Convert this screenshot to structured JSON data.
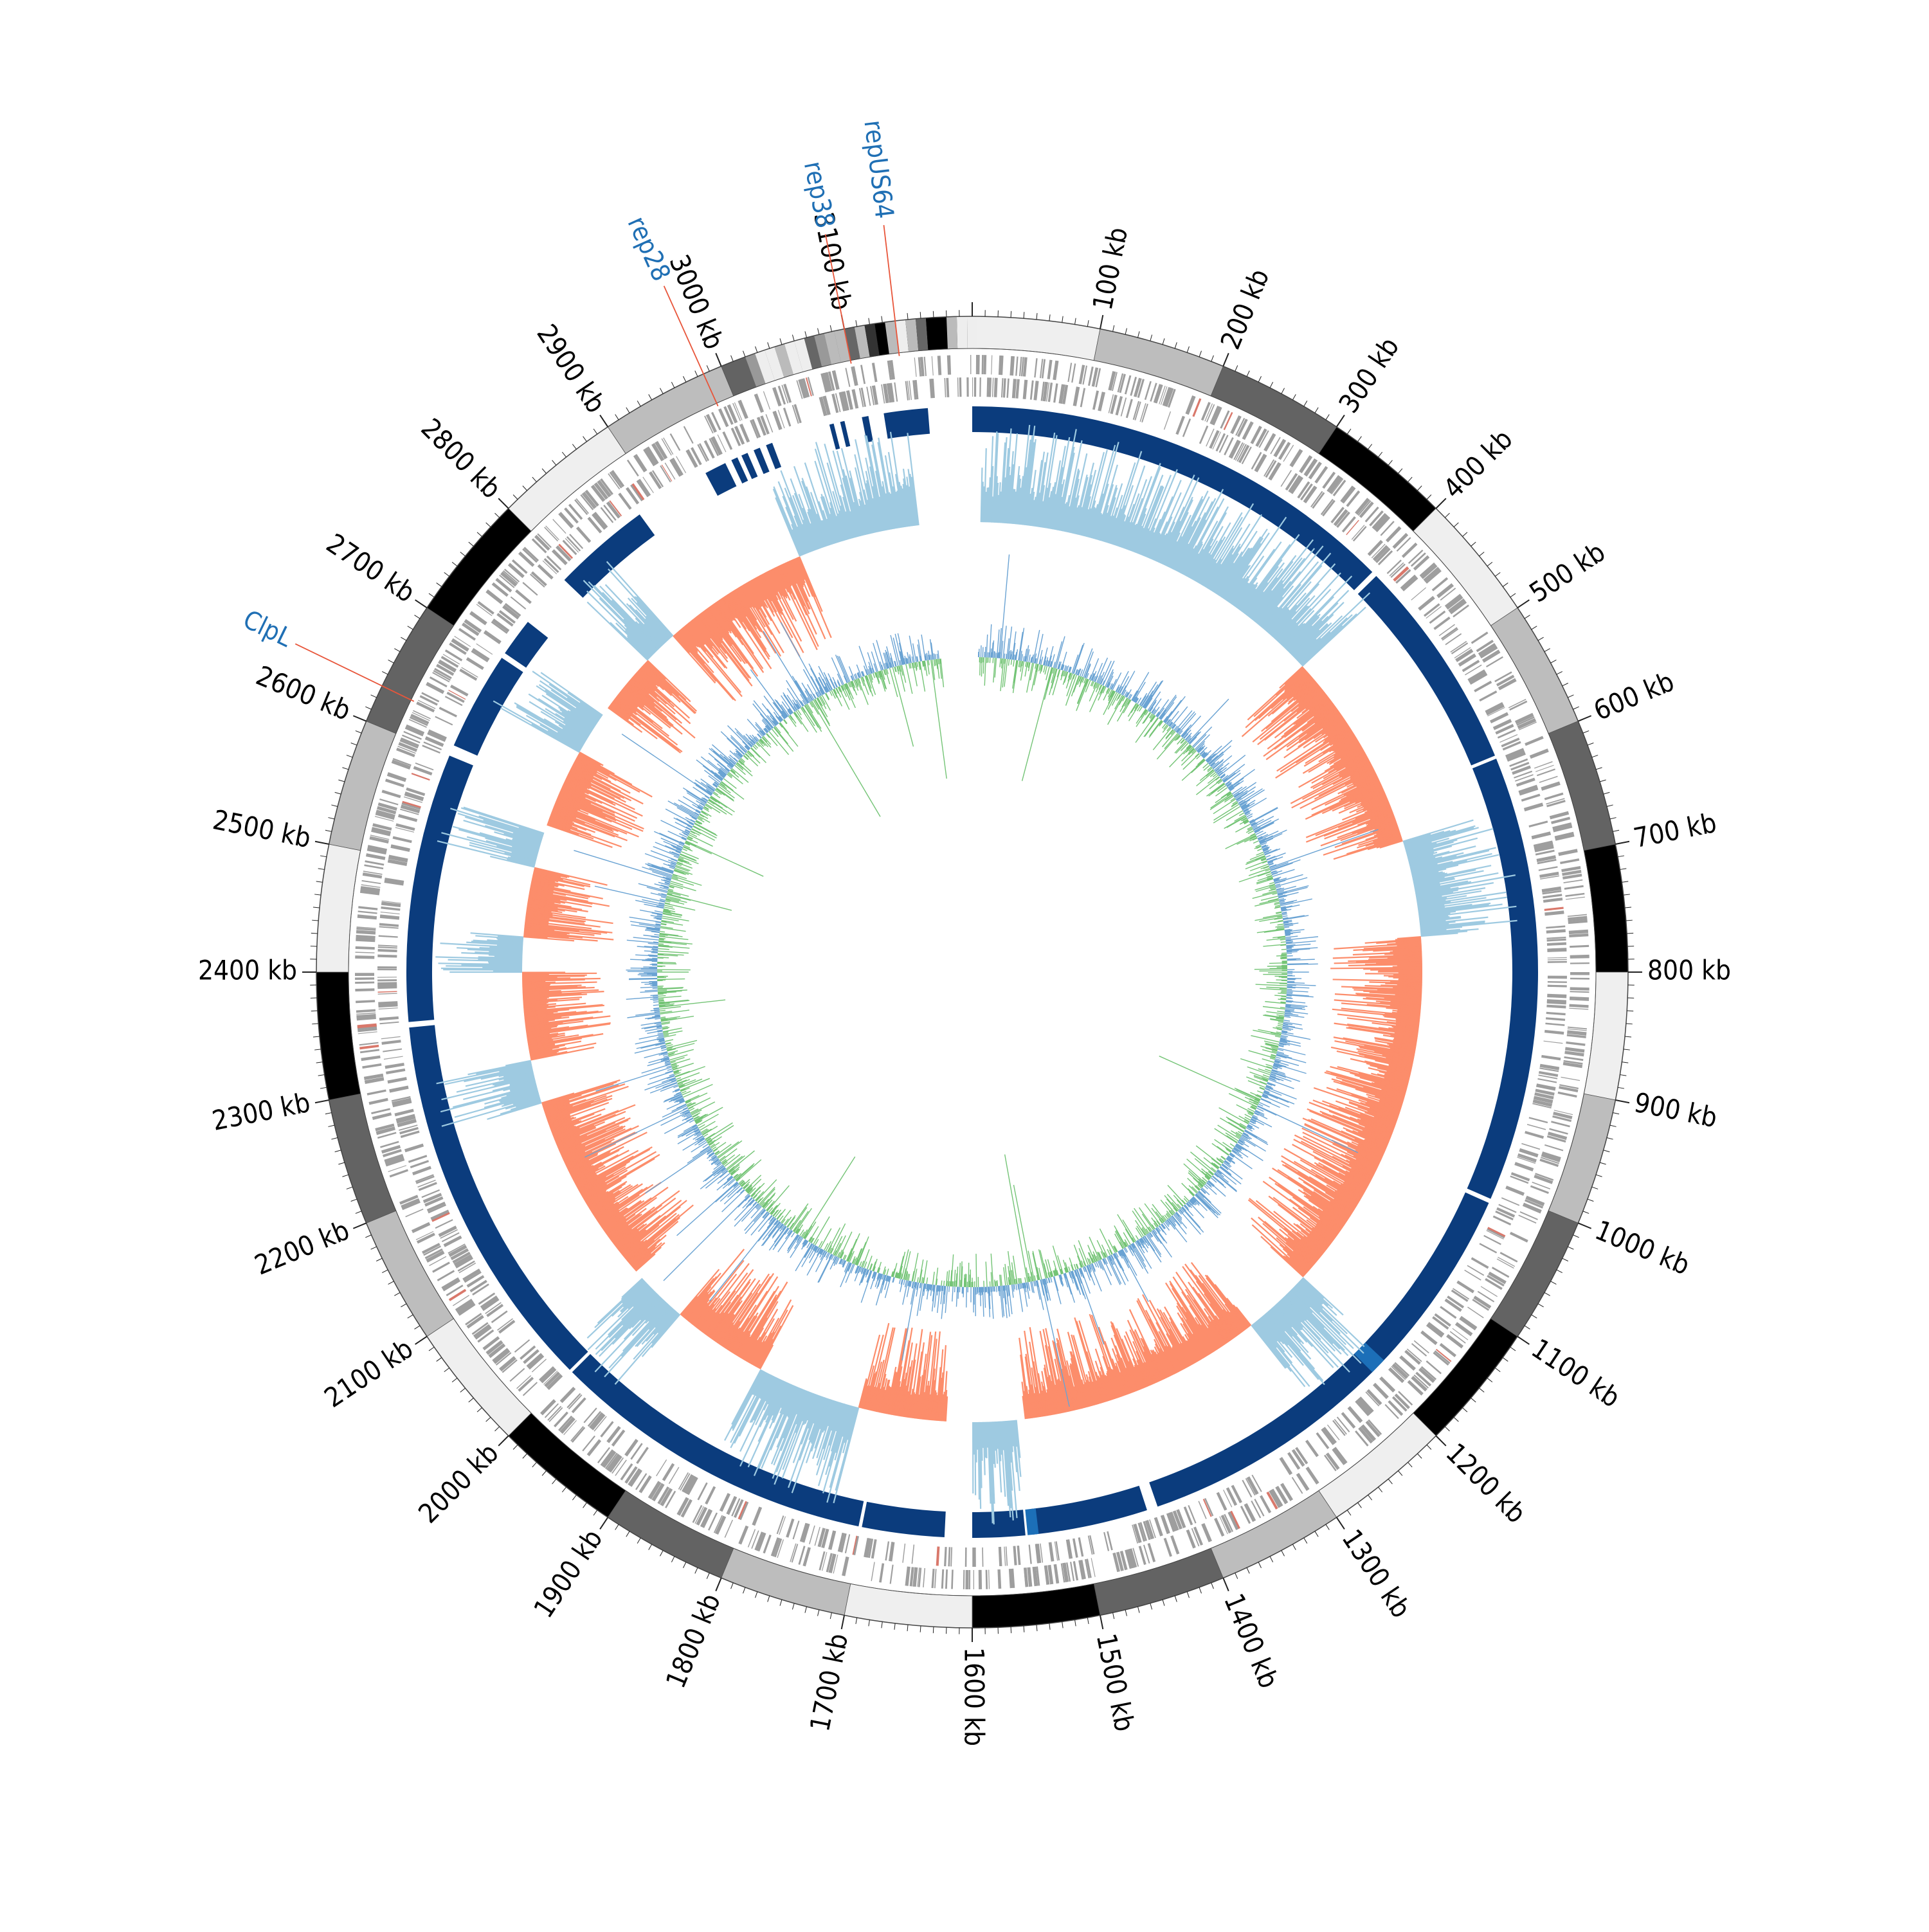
{
  "genome_map": {
    "genome_length_kb": 3200,
    "start_angle_label": "0 kb at top, clockwise",
    "tick_labels": [
      "100 kb",
      "200 kb",
      "300 kb",
      "400 kb",
      "500 kb",
      "600 kb",
      "700 kb",
      "800 kb",
      "900 kb",
      "1000 kb",
      "1100 kb",
      "1200 kb",
      "1300 kb",
      "1400 kb",
      "1500 kb",
      "1600 kb",
      "1700 kb",
      "1800 kb",
      "1900 kb",
      "2000 kb",
      "2100 kb",
      "2200 kb",
      "2300 kb",
      "2400 kb",
      "2500 kb",
      "2600 kb",
      "2700 kb",
      "2800 kb",
      "2900 kb",
      "3000 kb",
      "3100 kb"
    ],
    "tick_values_kb": [
      100,
      200,
      300,
      400,
      500,
      600,
      700,
      800,
      900,
      1000,
      1100,
      1200,
      1300,
      1400,
      1500,
      1600,
      1700,
      1800,
      1900,
      2000,
      2100,
      2200,
      2300,
      2400,
      2500,
      2600,
      2700,
      2800,
      2900,
      3000,
      3100
    ],
    "contig_band_shades": [
      "#efefef",
      "#bdbdbd",
      "#636363",
      "#000000",
      "#efefef",
      "#bdbdbd",
      "#636363",
      "#000000",
      "#efefef",
      "#bdbdbd",
      "#636363",
      "#000000",
      "#efefef",
      "#bdbdbd",
      "#636363",
      "#000000",
      "#efefef",
      "#bdbdbd",
      "#636363",
      "#000000",
      "#efefef",
      "#bdbdbd",
      "#636363",
      "#000000",
      "#efefef",
      "#bdbdbd",
      "#636363",
      "#000000",
      "#efefef",
      "#bdbdbd",
      "#636363",
      "#000000"
    ],
    "gene_labels": [
      {
        "name": "repUS64",
        "position_kb": 3140
      },
      {
        "name": "rep38",
        "position_kb": 3100
      },
      {
        "name": "rep28",
        "position_kb": 2985
      },
      {
        "name": "ClpL",
        "position_kb": 2630
      }
    ],
    "colors": {
      "label_text": "#1f6fb4",
      "label_line": "#e8553a",
      "alignment_ring": "#0b3c7d",
      "alignment_highlight": "#1c6fb8",
      "skew_positive": "#fc8d6b",
      "skew_negative": "#9ecae1",
      "gc_content_positive": "#74c476",
      "gc_content_negative": "#6aa3d3",
      "cds_marks": "#9e9e9e",
      "rna_marks": "#d9786b"
    }
  }
}
